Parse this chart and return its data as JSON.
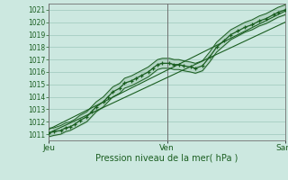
{
  "title": "",
  "xlabel": "Pression niveau de la mer( hPa )",
  "bg_color": "#cce8e0",
  "plot_bg_color": "#cce8e0",
  "grid_color": "#9ec8bc",
  "line_color": "#1a5e20",
  "ylim": [
    1010.5,
    1021.5
  ],
  "yticks": [
    1011,
    1012,
    1013,
    1014,
    1015,
    1016,
    1017,
    1018,
    1019,
    1020,
    1021
  ],
  "xtick_labels": [
    "Jeu",
    "Ven",
    "Sam"
  ],
  "xtick_positions": [
    0.0,
    0.5,
    1.0
  ],
  "line_main_x": [
    0.0,
    0.02,
    0.05,
    0.07,
    0.09,
    0.11,
    0.13,
    0.16,
    0.18,
    0.2,
    0.23,
    0.25,
    0.27,
    0.3,
    0.32,
    0.35,
    0.37,
    0.39,
    0.42,
    0.44,
    0.46,
    0.48,
    0.51,
    0.53,
    0.55,
    0.57,
    0.6,
    0.62,
    0.65,
    0.68,
    0.71,
    0.74,
    0.77,
    0.8,
    0.83,
    0.86,
    0.89,
    0.92,
    0.95,
    0.97,
    1.0
  ],
  "line_main_y": [
    1011.1,
    1011.2,
    1011.3,
    1011.5,
    1011.6,
    1011.8,
    1012.1,
    1012.4,
    1012.8,
    1013.2,
    1013.6,
    1014.0,
    1014.4,
    1014.7,
    1015.1,
    1015.3,
    1015.5,
    1015.7,
    1016.0,
    1016.3,
    1016.6,
    1016.7,
    1016.7,
    1016.6,
    1016.6,
    1016.5,
    1016.4,
    1016.3,
    1016.5,
    1017.2,
    1018.0,
    1018.5,
    1019.0,
    1019.3,
    1019.6,
    1019.8,
    1020.1,
    1020.3,
    1020.6,
    1020.8,
    1021.0
  ],
  "env_upper_x": [
    0.0,
    0.02,
    0.05,
    0.07,
    0.09,
    0.11,
    0.13,
    0.16,
    0.18,
    0.2,
    0.23,
    0.25,
    0.27,
    0.3,
    0.32,
    0.35,
    0.37,
    0.39,
    0.42,
    0.44,
    0.46,
    0.48,
    0.51,
    0.53,
    0.55,
    0.57,
    0.6,
    0.62,
    0.65,
    0.68,
    0.71,
    0.74,
    0.77,
    0.8,
    0.83,
    0.86,
    0.89,
    0.92,
    0.95,
    0.97,
    1.0
  ],
  "env_upper_y": [
    1011.5,
    1011.5,
    1011.7,
    1011.9,
    1012.0,
    1012.2,
    1012.5,
    1012.8,
    1013.2,
    1013.6,
    1014.0,
    1014.4,
    1014.8,
    1015.1,
    1015.5,
    1015.7,
    1015.9,
    1016.1,
    1016.4,
    1016.7,
    1017.0,
    1017.1,
    1017.1,
    1017.0,
    1017.0,
    1016.9,
    1016.8,
    1016.7,
    1016.9,
    1017.6,
    1018.4,
    1018.9,
    1019.4,
    1019.7,
    1020.0,
    1020.2,
    1020.5,
    1020.7,
    1021.0,
    1021.2,
    1021.4
  ],
  "env_lower_y": [
    1010.8,
    1010.9,
    1011.0,
    1011.2,
    1011.3,
    1011.5,
    1011.7,
    1012.0,
    1012.4,
    1012.8,
    1013.2,
    1013.6,
    1014.0,
    1014.3,
    1014.7,
    1014.9,
    1015.1,
    1015.3,
    1015.6,
    1015.9,
    1016.2,
    1016.3,
    1016.3,
    1016.2,
    1016.2,
    1016.1,
    1016.0,
    1015.9,
    1016.1,
    1016.8,
    1017.6,
    1018.1,
    1018.6,
    1018.9,
    1019.2,
    1019.4,
    1019.7,
    1019.9,
    1020.2,
    1020.4,
    1020.6
  ],
  "line2_x": [
    0.0,
    1.0
  ],
  "line2_y": [
    1011.4,
    1020.9
  ],
  "line3_x": [
    0.0,
    1.0
  ],
  "line3_y": [
    1011.1,
    1020.0
  ],
  "vline_positions": [
    0.0,
    0.5,
    1.0
  ],
  "xlabel_fontsize": 7,
  "ytick_fontsize": 5.5,
  "xtick_fontsize": 6.5
}
